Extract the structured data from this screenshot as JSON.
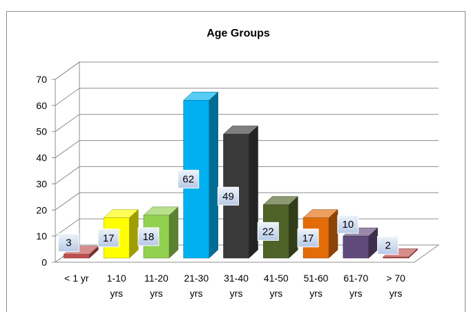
{
  "chart_data": {
    "type": "bar",
    "title": "Age Groups",
    "xlabel": "",
    "ylabel": "",
    "ylim": [
      0,
      70
    ],
    "yticks": [
      0,
      10,
      20,
      30,
      40,
      50,
      60,
      70
    ],
    "grid": true,
    "legend": "none",
    "categories": [
      [
        "< 1 yr"
      ],
      [
        "1-10",
        "yrs"
      ],
      [
        "11-20",
        "yrs"
      ],
      [
        "21-30",
        "yrs"
      ],
      [
        "31-40",
        "yrs"
      ],
      [
        "41-50",
        "yrs"
      ],
      [
        "51-60",
        "yrs"
      ],
      [
        "61-70",
        "yrs"
      ],
      [
        "> 70",
        "yrs"
      ]
    ],
    "values": [
      3,
      17,
      18,
      62,
      49,
      22,
      17,
      10,
      2
    ],
    "colors": [
      "#c0504d",
      "#ffff00",
      "#92d050",
      "#00b0f0",
      "#3a3a3a",
      "#4f6228",
      "#e36c09",
      "#604a7b",
      "#c0504d"
    ]
  }
}
